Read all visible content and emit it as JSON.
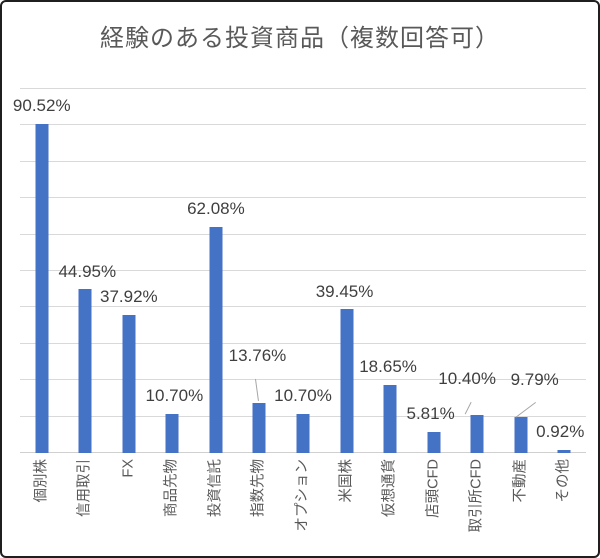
{
  "window": {
    "background": "#ffffff",
    "border_color": "#1f1f1f"
  },
  "chart_data": {
    "type": "bar",
    "title": "経験のある投資商品（複数回答可）",
    "categories": [
      "個別株",
      "信用取引",
      "FX",
      "商品先物",
      "投資信託",
      "指数先物",
      "オプション",
      "米国株",
      "仮想通貨",
      "店頭CFD",
      "取引所CFD",
      "不動産",
      "その他"
    ],
    "values": [
      90.52,
      44.95,
      37.92,
      10.7,
      62.08,
      13.76,
      10.7,
      39.45,
      18.65,
      5.81,
      10.4,
      9.79,
      0.92
    ],
    "value_labels": [
      "90.52%",
      "44.95%",
      "37.92%",
      "10.70%",
      "62.08%",
      "13.76%",
      "10.70%",
      "39.45%",
      "18.65%",
      "5.81%",
      "10.40%",
      "9.79%",
      "0.92%"
    ],
    "xlabel": "",
    "ylabel": "",
    "ylim": [
      0,
      100
    ],
    "gridline_step": 10,
    "grid": true,
    "legend": "none",
    "data_labels": true,
    "y_tick_labels_visible": false,
    "colors": {
      "bar": "#4472C4",
      "gridline": "#D9D9D9",
      "axis_line": "#D0D0D0",
      "title_text": "#595959",
      "data_label_text": "#3F3F3F",
      "axis_label_text": "#595959",
      "leader_line": "#A6A6A6"
    },
    "label_layout": [
      {
        "dx": 0,
        "raise": 0
      },
      {
        "dx": 2,
        "raise": 0
      },
      {
        "dx": 0,
        "raise": 0
      },
      {
        "dx": 2,
        "raise": 0
      },
      {
        "dx": 0,
        "raise": 0
      },
      {
        "dx": -2,
        "raise": 29,
        "leader": [
          -1,
          -2,
          -4,
          -24
        ]
      },
      {
        "dx": 0,
        "raise": 0
      },
      {
        "dx": -2,
        "raise": 0
      },
      {
        "dx": -2,
        "raise": 0
      },
      {
        "dx": -3,
        "raise": 0
      },
      {
        "dx": -10,
        "raise": 18,
        "leader": [
          -12,
          -1,
          -6,
          -13
        ]
      },
      {
        "dx": 14,
        "raise": 20,
        "leader": [
          -5,
          0,
          15,
          -15
        ]
      },
      {
        "dx": -4,
        "raise": 0
      }
    ]
  }
}
